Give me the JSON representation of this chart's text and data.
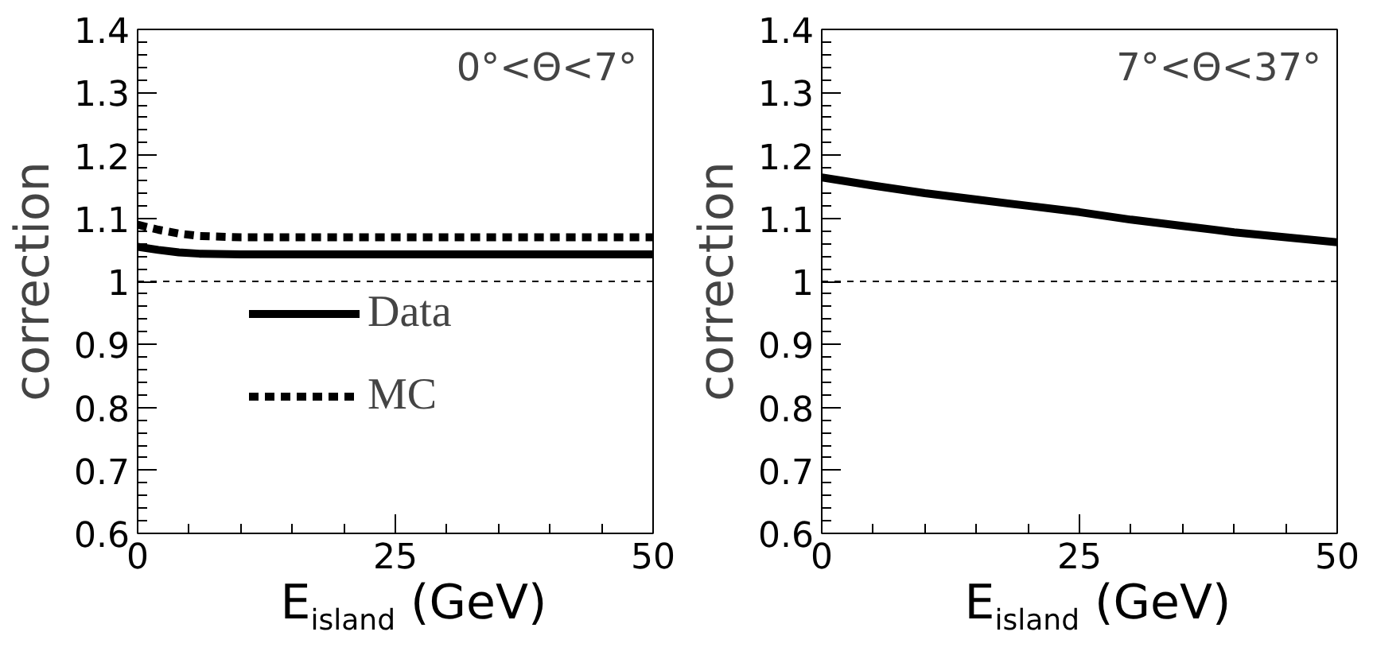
{
  "chart_data": [
    {
      "type": "line",
      "xlabel": "E$_{island}$ (GeV)",
      "ylabel": "correction",
      "annotations": [
        "0°<Θ<7°"
      ],
      "x": [
        0,
        2,
        4,
        6,
        10,
        20,
        30,
        40,
        50
      ],
      "series": [
        {
          "name": "Data",
          "color": "#000000",
          "line_style": "solid",
          "values": [
            1.055,
            1.05,
            1.046,
            1.044,
            1.043,
            1.043,
            1.043,
            1.043,
            1.043
          ]
        },
        {
          "name": "MC",
          "color": "#000000",
          "line_style": "dashed",
          "values": [
            1.09,
            1.082,
            1.076,
            1.072,
            1.07,
            1.07,
            1.07,
            1.07,
            1.07
          ]
        }
      ],
      "xlim": [
        0,
        50
      ],
      "xticks": [
        0,
        25,
        50
      ],
      "ylim": [
        0.6,
        1.4
      ],
      "yticks": [
        0.6,
        0.7,
        0.8,
        0.9,
        1,
        1.1,
        1.2,
        1.3,
        1.4
      ],
      "ref_lines": [
        {
          "axis": "y",
          "value": 1,
          "line_style": "dashed",
          "color": "#000000"
        }
      ],
      "legend": "left",
      "grid": false
    },
    {
      "type": "line",
      "xlabel": "E$_{island}$ (GeV)",
      "ylabel": "correction",
      "annotations": [
        "7°<Θ<37°"
      ],
      "x": [
        0,
        5,
        10,
        15,
        20,
        25,
        30,
        35,
        40,
        45,
        50
      ],
      "series": [
        {
          "color": "#000000",
          "line_style": "solid",
          "values": [
            1.165,
            1.152,
            1.14,
            1.13,
            1.12,
            1.11,
            1.098,
            1.088,
            1.078,
            1.07,
            1.062
          ]
        }
      ],
      "xlim": [
        0,
        50
      ],
      "xticks": [
        0,
        25,
        50
      ],
      "ylim": [
        0.6,
        1.4
      ],
      "yticks": [
        0.6,
        0.7,
        0.8,
        0.9,
        1,
        1.1,
        1.2,
        1.3,
        1.4
      ],
      "ref_lines": [
        {
          "axis": "y",
          "value": 1,
          "line_style": "dashed",
          "color": "#000000"
        }
      ],
      "grid": false
    }
  ]
}
